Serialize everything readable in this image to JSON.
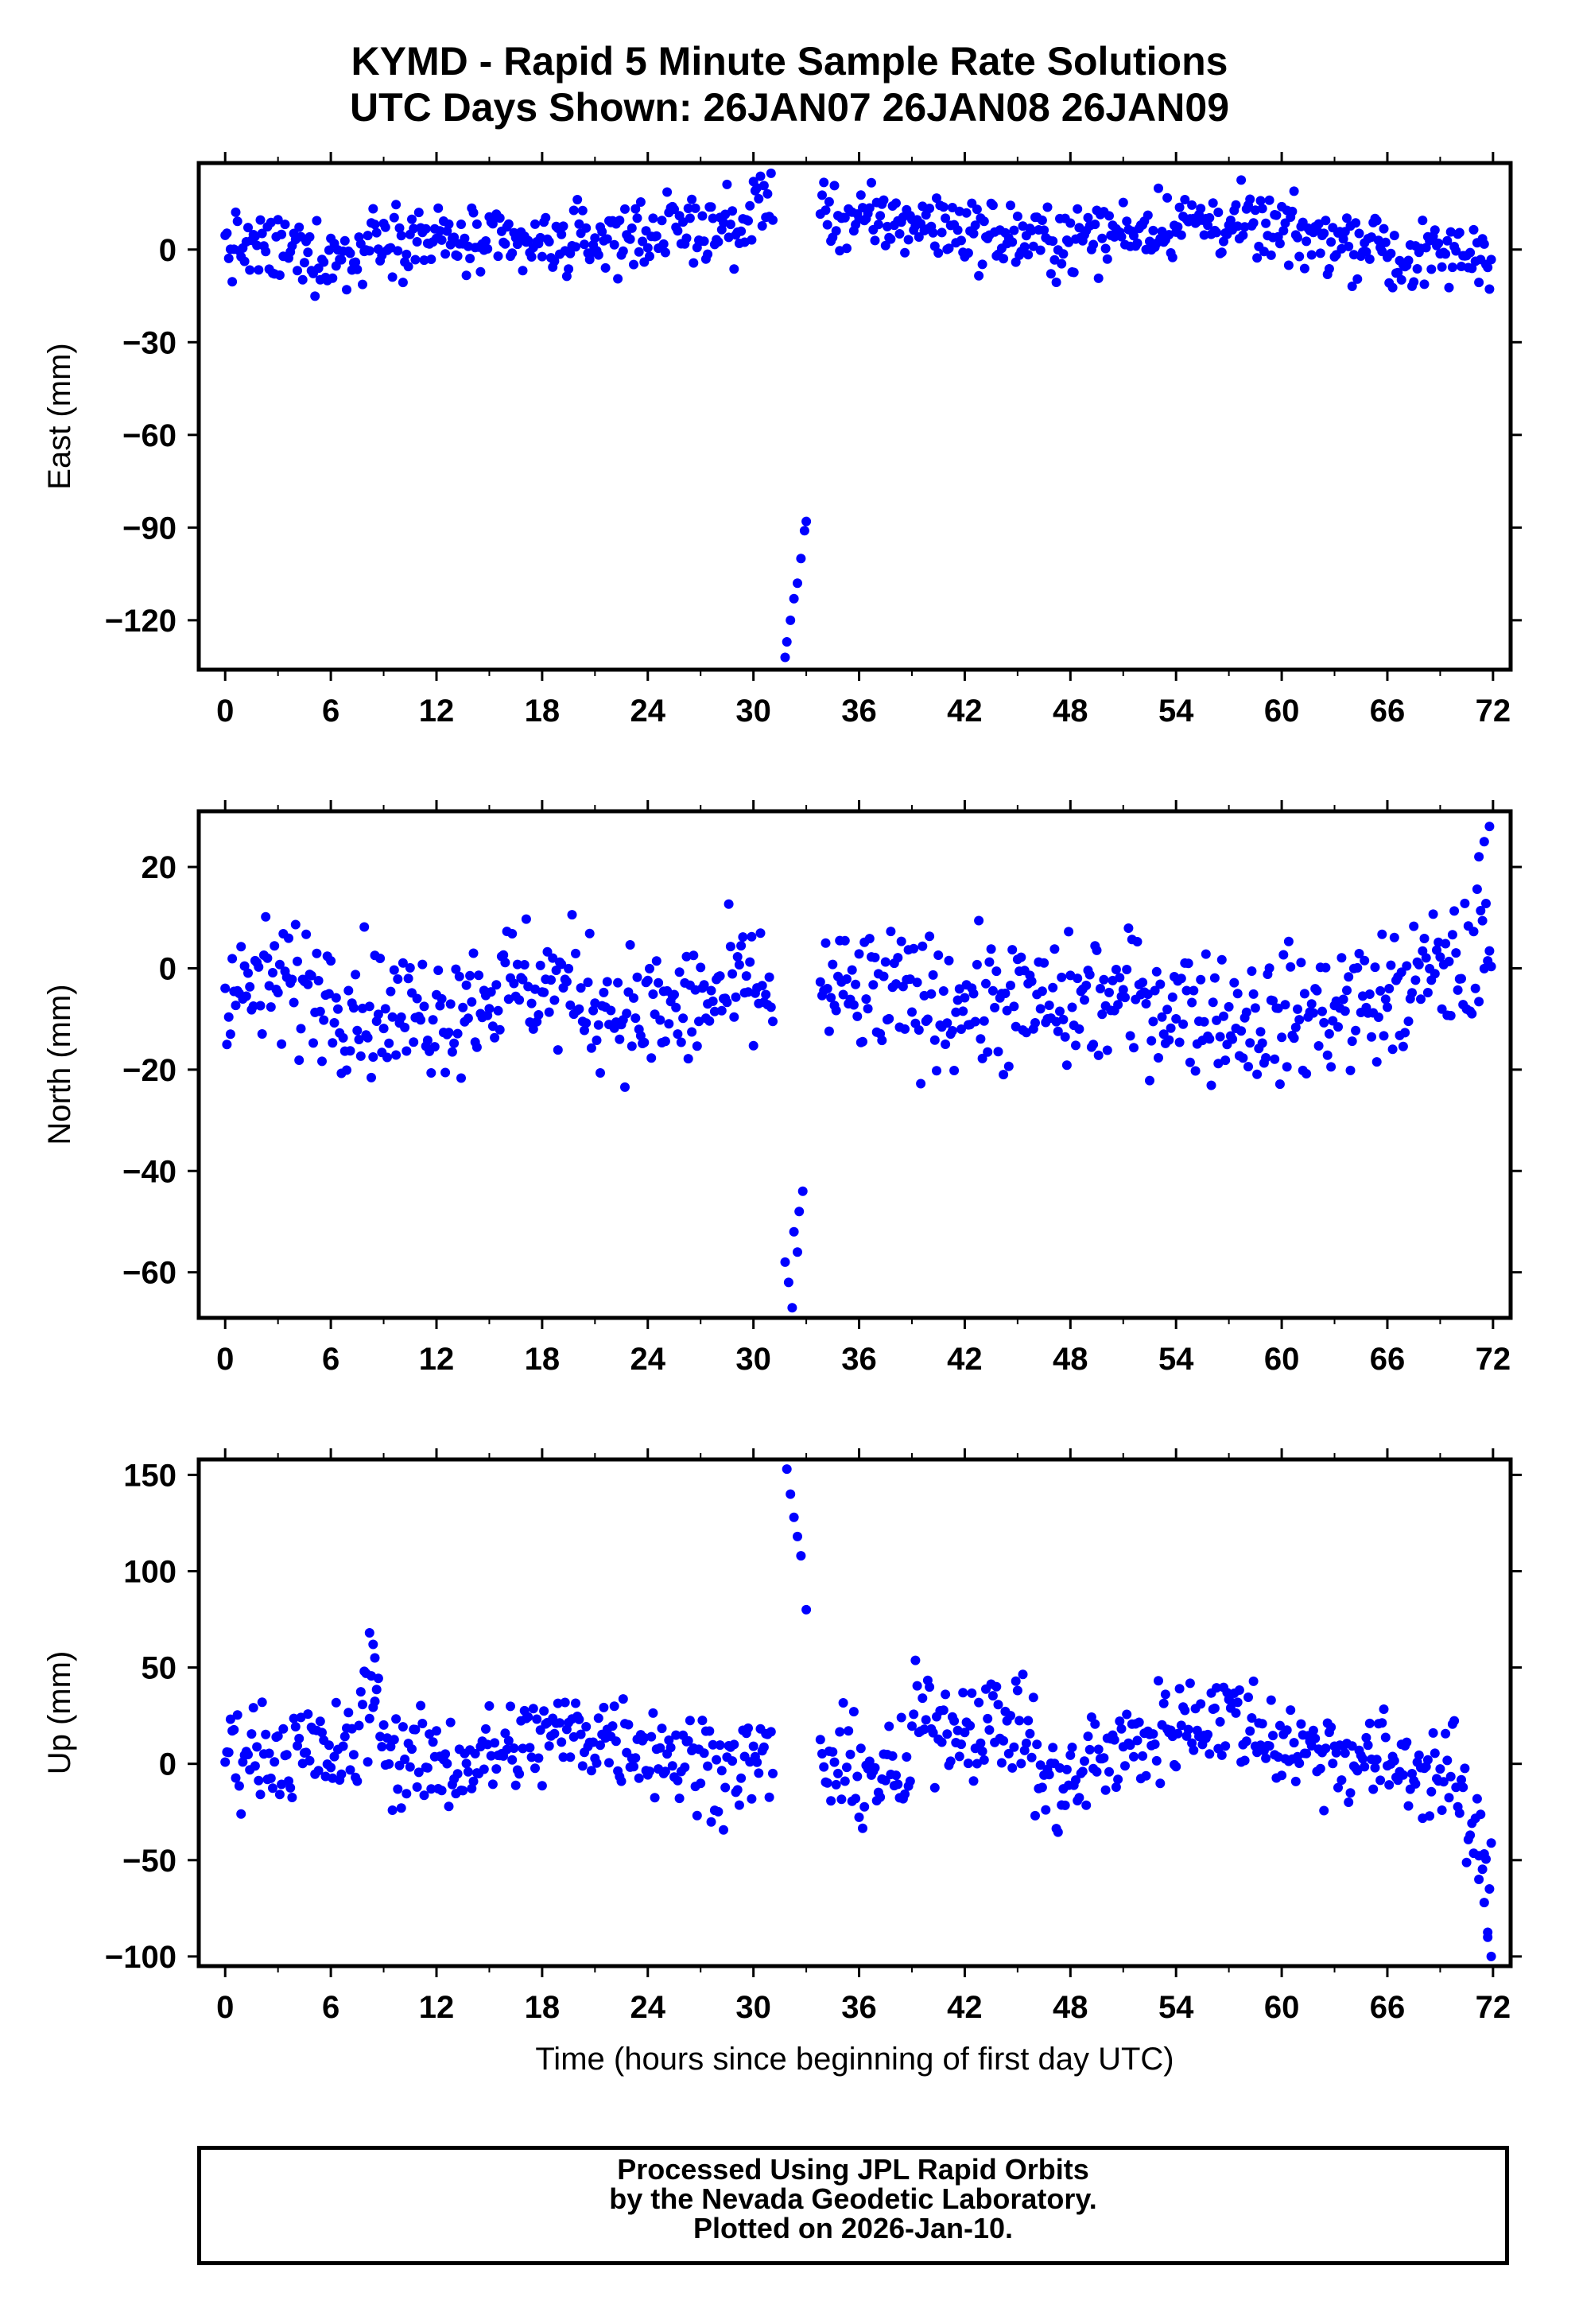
{
  "figure": {
    "title_line1": "KYMD - Rapid 5 Minute Sample Rate Solutions",
    "title_line2": "UTC Days Shown:  26JAN07 26JAN08 26JAN09",
    "footer_line1": "Processed Using JPL Rapid Orbits",
    "footer_line2": "by the Nevada Geodetic Laboratory.",
    "footer_line3": "Plotted on 2026-Jan-10."
  },
  "colors": {
    "points": "#0000ff",
    "axes": "#000000"
  },
  "chart_data": [
    {
      "type": "scatter",
      "ylabel": "East (mm)",
      "xlim": [
        -1.5,
        73
      ],
      "ylim": [
        -136,
        28
      ],
      "x_ticks": [
        0,
        6,
        12,
        18,
        24,
        30,
        36,
        42,
        48,
        54,
        60,
        66,
        72
      ],
      "y_ticks": [
        0,
        -30,
        -60,
        -90,
        -120
      ],
      "y_tick_labels": [
        "0",
        "−30",
        "−60",
        "−90",
        "−120"
      ],
      "xlabel": "",
      "points_summary": "5-minute position samples over 72 h; mostly within -10 to +15 mm, with an outlier excursion near hour 32-33",
      "outliers": [
        [
          31.8,
          -132
        ],
        [
          31.9,
          -127
        ],
        [
          32.1,
          -120
        ],
        [
          32.3,
          -113
        ],
        [
          32.5,
          -108
        ],
        [
          32.7,
          -100
        ],
        [
          32.9,
          -91
        ],
        [
          33.0,
          -88
        ]
      ]
    },
    {
      "type": "scatter",
      "ylabel": "North (mm)",
      "xlim": [
        -1.5,
        73
      ],
      "ylim": [
        -69,
        31
      ],
      "x_ticks": [
        0,
        6,
        12,
        18,
        24,
        30,
        36,
        42,
        48,
        54,
        60,
        66,
        72
      ],
      "y_ticks": [
        20,
        0,
        -20,
        -40,
        -60
      ],
      "y_tick_labels": [
        "20",
        "0",
        "−20",
        "−40",
        "−60"
      ],
      "xlabel": "",
      "points_summary": "scatter centered near -5 mm; dip to about -67 mm near hour 32-33; rise to about +28 mm at hour 71-72",
      "outliers": [
        [
          31.8,
          -58
        ],
        [
          32.0,
          -62
        ],
        [
          32.2,
          -67
        ],
        [
          32.3,
          -52
        ],
        [
          32.5,
          -56
        ],
        [
          32.6,
          -48
        ],
        [
          32.8,
          -44
        ],
        [
          71.2,
          22
        ],
        [
          71.5,
          25
        ],
        [
          71.8,
          28
        ]
      ]
    },
    {
      "type": "scatter",
      "ylabel": "Up (mm)",
      "xlim": [
        -1.5,
        73
      ],
      "ylim": [
        -105,
        158
      ],
      "x_ticks": [
        0,
        6,
        12,
        18,
        24,
        30,
        36,
        42,
        48,
        54,
        60,
        66,
        72
      ],
      "y_ticks": [
        150,
        100,
        50,
        0,
        -50,
        -100
      ],
      "y_tick_labels": [
        "150",
        "100",
        "50",
        "0",
        "−50",
        "−100"
      ],
      "xlabel": "Time (hours since beginning of first day UTC)",
      "points_summary": "scatter around +10 mm; bump to about +68 mm near hour 8; spike to about +153 mm near hour 32-33; drop to about -100 mm at hour 71-72",
      "outliers": [
        [
          8.2,
          68
        ],
        [
          8.4,
          62
        ],
        [
          8.5,
          55
        ],
        [
          31.9,
          153
        ],
        [
          32.1,
          140
        ],
        [
          32.3,
          128
        ],
        [
          32.5,
          118
        ],
        [
          32.7,
          108
        ],
        [
          33.0,
          80
        ],
        [
          71.2,
          -60
        ],
        [
          71.5,
          -72
        ],
        [
          71.7,
          -90
        ],
        [
          71.9,
          -100
        ]
      ]
    }
  ]
}
